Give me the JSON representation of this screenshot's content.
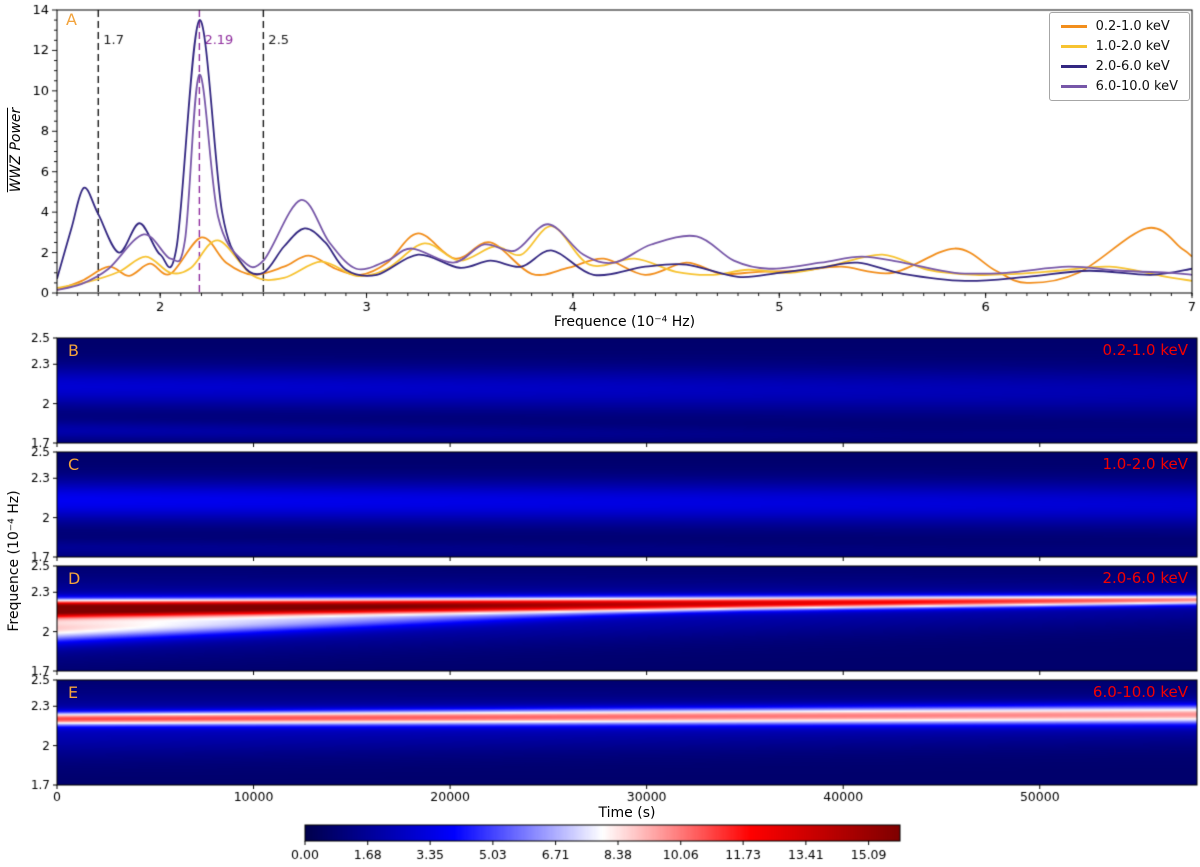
{
  "style": {
    "panel_letter_color": "#f2a33c",
    "band_label_color": "#f20000",
    "axis_color": "#000000",
    "background": "#ffffff"
  },
  "chart_data": [
    {
      "type": "line",
      "panel_label": "A",
      "xlabel": "Frequence (10⁻⁴ Hz)",
      "ylabel": "WWZ Power",
      "xlim": [
        1.5,
        7
      ],
      "ylim": [
        0,
        14
      ],
      "xticks": [
        2,
        3,
        4,
        5,
        6,
        7
      ],
      "yticks": [
        0,
        2,
        4,
        6,
        8,
        10,
        12,
        14
      ],
      "legend_position": "top-right",
      "vlines": [
        {
          "x": 1.7,
          "label": "1.7",
          "color": "#1a1a1a"
        },
        {
          "x": 2.19,
          "label": "2.19",
          "color": "#8f2d9e"
        },
        {
          "x": 2.5,
          "label": "2.5",
          "color": "#1a1a1a"
        }
      ],
      "series": [
        {
          "name": "0.2-1.0 keV",
          "color": "#f28e1c",
          "points": [
            [
              1.5,
              0.15
            ],
            [
              1.62,
              0.6
            ],
            [
              1.75,
              1.3
            ],
            [
              1.85,
              0.85
            ],
            [
              1.95,
              1.45
            ],
            [
              2.05,
              0.95
            ],
            [
              2.2,
              2.75
            ],
            [
              2.32,
              1.5
            ],
            [
              2.45,
              0.9
            ],
            [
              2.6,
              1.3
            ],
            [
              2.72,
              1.85
            ],
            [
              2.85,
              1.2
            ],
            [
              2.97,
              0.9
            ],
            [
              3.1,
              1.5
            ],
            [
              3.25,
              2.95
            ],
            [
              3.43,
              1.7
            ],
            [
              3.6,
              2.5
            ],
            [
              3.8,
              0.95
            ],
            [
              3.98,
              1.25
            ],
            [
              4.15,
              1.7
            ],
            [
              4.35,
              0.9
            ],
            [
              4.55,
              1.5
            ],
            [
              4.72,
              0.95
            ],
            [
              4.9,
              1.05
            ],
            [
              5.1,
              1.1
            ],
            [
              5.3,
              1.3
            ],
            [
              5.55,
              1.0
            ],
            [
              5.85,
              2.2
            ],
            [
              6.05,
              1.1
            ],
            [
              6.2,
              0.5
            ],
            [
              6.45,
              1.0
            ],
            [
              6.78,
              3.2
            ],
            [
              6.95,
              2.2
            ],
            [
              7.0,
              1.8
            ]
          ]
        },
        {
          "name": "1.0-2.0 keV",
          "color": "#f7c331",
          "points": [
            [
              1.5,
              0.25
            ],
            [
              1.65,
              0.55
            ],
            [
              1.8,
              1.05
            ],
            [
              1.93,
              1.8
            ],
            [
              2.05,
              1.0
            ],
            [
              2.15,
              1.25
            ],
            [
              2.28,
              2.6
            ],
            [
              2.45,
              0.85
            ],
            [
              2.6,
              0.75
            ],
            [
              2.78,
              1.55
            ],
            [
              2.95,
              0.85
            ],
            [
              3.1,
              1.2
            ],
            [
              3.28,
              2.45
            ],
            [
              3.45,
              1.6
            ],
            [
              3.62,
              2.3
            ],
            [
              3.75,
              1.9
            ],
            [
              3.9,
              3.3
            ],
            [
              4.08,
              1.4
            ],
            [
              4.3,
              1.7
            ],
            [
              4.5,
              1.05
            ],
            [
              4.68,
              0.9
            ],
            [
              4.85,
              1.15
            ],
            [
              5.05,
              1.0
            ],
            [
              5.25,
              1.35
            ],
            [
              5.5,
              1.9
            ],
            [
              5.72,
              1.15
            ],
            [
              5.95,
              0.9
            ],
            [
              6.15,
              0.95
            ],
            [
              6.35,
              1.1
            ],
            [
              6.6,
              1.3
            ],
            [
              6.85,
              0.85
            ],
            [
              7.0,
              0.6
            ]
          ]
        },
        {
          "name": "2.0-6.0 keV",
          "color": "#332781",
          "points": [
            [
              1.5,
              0.7
            ],
            [
              1.57,
              3.2
            ],
            [
              1.63,
              5.2
            ],
            [
              1.7,
              3.9
            ],
            [
              1.8,
              2.0
            ],
            [
              1.9,
              3.45
            ],
            [
              2.0,
              1.9
            ],
            [
              2.08,
              2.3
            ],
            [
              2.19,
              13.5
            ],
            [
              2.3,
              4.0
            ],
            [
              2.4,
              1.4
            ],
            [
              2.5,
              1.0
            ],
            [
              2.6,
              2.3
            ],
            [
              2.7,
              3.2
            ],
            [
              2.8,
              2.5
            ],
            [
              2.9,
              1.15
            ],
            [
              3.05,
              0.9
            ],
            [
              3.25,
              1.9
            ],
            [
              3.45,
              1.25
            ],
            [
              3.6,
              1.6
            ],
            [
              3.75,
              1.3
            ],
            [
              3.9,
              2.1
            ],
            [
              4.1,
              0.9
            ],
            [
              4.35,
              1.3
            ],
            [
              4.55,
              1.4
            ],
            [
              4.8,
              0.8
            ],
            [
              5.0,
              1.0
            ],
            [
              5.2,
              1.25
            ],
            [
              5.38,
              1.5
            ],
            [
              5.6,
              0.95
            ],
            [
              5.9,
              0.6
            ],
            [
              6.2,
              0.8
            ],
            [
              6.5,
              1.1
            ],
            [
              6.8,
              0.9
            ],
            [
              7.0,
              1.2
            ]
          ]
        },
        {
          "name": "6.0-10.0 keV",
          "color": "#7757a8",
          "points": [
            [
              1.5,
              0.15
            ],
            [
              1.62,
              0.45
            ],
            [
              1.75,
              1.2
            ],
            [
              1.92,
              2.9
            ],
            [
              2.05,
              1.7
            ],
            [
              2.12,
              2.6
            ],
            [
              2.19,
              10.8
            ],
            [
              2.28,
              3.8
            ],
            [
              2.4,
              1.6
            ],
            [
              2.5,
              1.6
            ],
            [
              2.68,
              4.6
            ],
            [
              2.82,
              2.5
            ],
            [
              2.95,
              1.2
            ],
            [
              3.1,
              1.6
            ],
            [
              3.22,
              2.2
            ],
            [
              3.42,
              1.5
            ],
            [
              3.57,
              2.4
            ],
            [
              3.72,
              2.1
            ],
            [
              3.88,
              3.4
            ],
            [
              4.05,
              1.9
            ],
            [
              4.2,
              1.5
            ],
            [
              4.38,
              2.4
            ],
            [
              4.6,
              2.8
            ],
            [
              4.78,
              1.6
            ],
            [
              4.95,
              1.2
            ],
            [
              5.2,
              1.5
            ],
            [
              5.4,
              1.8
            ],
            [
              5.6,
              1.5
            ],
            [
              5.85,
              1.0
            ],
            [
              6.1,
              1.0
            ],
            [
              6.4,
              1.3
            ],
            [
              6.65,
              1.1
            ],
            [
              6.9,
              1.0
            ],
            [
              7.0,
              0.9
            ]
          ]
        }
      ]
    },
    {
      "type": "heatmap",
      "panel_label": "B",
      "band_label": "0.2-1.0 keV",
      "xlim": [
        0,
        58000
      ],
      "ylim": [
        1.7,
        2.5
      ],
      "base": 0.7,
      "bands": [
        {
          "c0": 2.13,
          "c1": 2.09,
          "a0": 2.3,
          "a1": 1.5,
          "w0": 0.11,
          "w1": 0.13,
          "te": 1
        },
        {
          "c0": 1.79,
          "c1": 1.75,
          "a0": 1.4,
          "a1": 0.4,
          "w0": 0.055,
          "w1": 0.045,
          "te": 0.75
        }
      ]
    },
    {
      "type": "heatmap",
      "panel_label": "C",
      "band_label": "1.0-2.0 keV",
      "xlim": [
        0,
        58000
      ],
      "ylim": [
        1.7,
        2.5
      ],
      "base": 0.7,
      "bands": [
        {
          "c0": 2.13,
          "c1": 2.1,
          "a0": 3.0,
          "a1": 2.3,
          "w0": 0.11,
          "w1": 0.12,
          "te": 1
        },
        {
          "c0": 1.76,
          "c1": 1.74,
          "a0": 0.9,
          "a1": 0.3,
          "w0": 0.05,
          "w1": 0.04,
          "te": 0.8
        }
      ]
    },
    {
      "type": "heatmap",
      "panel_label": "D",
      "band_label": "2.0-6.0 keV",
      "xlim": [
        0,
        58000
      ],
      "ylim": [
        1.7,
        2.5
      ],
      "base": 0.7,
      "bands": [
        {
          "c0": 2.175,
          "c1": 2.245,
          "a0": 15.5,
          "a1": 8.0,
          "w0": 0.045,
          "w1": 0.028,
          "te": 1
        },
        {
          "c0": 2.02,
          "c1": 2.17,
          "a0": 6.0,
          "a1": 0.0,
          "w0": 0.07,
          "w1": 0.02,
          "te": 0.6
        },
        {
          "c0": 2.1,
          "c1": 2.22,
          "a0": 2.2,
          "a1": 1.2,
          "w0": 0.18,
          "w1": 0.12,
          "te": 1
        }
      ]
    },
    {
      "type": "heatmap",
      "panel_label": "E",
      "band_label": "6.0-10.0 keV",
      "xlim": [
        0,
        58000
      ],
      "ylim": [
        1.7,
        2.5
      ],
      "base": 0.7,
      "bands": [
        {
          "c0": 2.205,
          "c1": 2.24,
          "a0": 8.5,
          "a1": 7.5,
          "w0": 0.035,
          "w1": 0.05,
          "te": 1
        },
        {
          "c0": 2.15,
          "c1": 2.2,
          "a0": 1.8,
          "a1": 1.5,
          "w0": 0.16,
          "w1": 0.13,
          "te": 1
        }
      ]
    }
  ],
  "heat_axis": {
    "ylabel": "Frequence (10⁻⁴ Hz)",
    "xlabel": "Time (s)",
    "xlim": [
      0,
      58000
    ],
    "xticks": [
      0,
      10000,
      20000,
      30000,
      40000,
      50000
    ],
    "ylim": [
      1.7,
      2.5
    ],
    "yticks": [
      1.7,
      2.0,
      2.3,
      2.5
    ],
    "ytick_labels": [
      "1.7",
      "2",
      "2.3",
      "2.5"
    ]
  },
  "colorbar": {
    "cmap": "seismic",
    "vmin": 0,
    "vmax": 15.93,
    "tick_values": [
      0,
      1.68,
      3.35,
      5.03,
      6.71,
      8.38,
      10.06,
      11.73,
      13.41,
      15.09
    ],
    "tick_labels": [
      "0.00",
      "1.68",
      "3.35",
      "5.03",
      "6.71",
      "8.38",
      "10.06",
      "11.73",
      "13.41",
      "15.09"
    ]
  }
}
